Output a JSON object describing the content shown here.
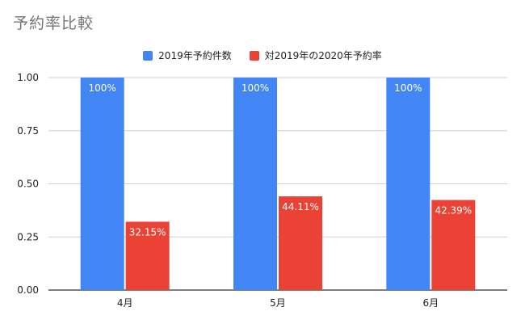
{
  "chart_data": {
    "type": "bar",
    "title": "予約率比較",
    "categories": [
      "4月",
      "5月",
      "6月"
    ],
    "series": [
      {
        "name": "2019年予約件数",
        "values": [
          1.0,
          1.0,
          1.0
        ],
        "labels": [
          "100%",
          "100%",
          "100%"
        ],
        "color": "#4285f4"
      },
      {
        "name": "対2019年の2020年予約率",
        "values": [
          0.3215,
          0.4411,
          0.4239
        ],
        "labels": [
          "32.15%",
          "44.11%",
          "42.39%"
        ],
        "color": "#ea4335"
      }
    ],
    "ylim": [
      0,
      1
    ],
    "yticks": [
      "0.00",
      "0.25",
      "0.50",
      "0.75",
      "1.00"
    ],
    "grid": true,
    "legend_position": "top"
  }
}
